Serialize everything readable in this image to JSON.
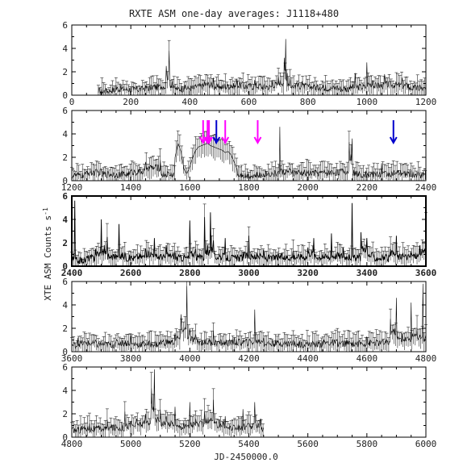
{
  "title": "RXTE ASM one-day averages: J1118+480",
  "xlabel": "JD-2450000.0",
  "ylabel": "XTE ASM Counts s",
  "ylabel_superscript": "-1",
  "colors": {
    "magenta_arrows": "#ff00ff",
    "blue_arrows": "#0000cc",
    "data": "#000000"
  },
  "chart_data": [
    {
      "type": "line",
      "panel": 1,
      "xlim": [
        0,
        1200
      ],
      "ylim": [
        0,
        6
      ],
      "xticks": [
        0,
        200,
        400,
        600,
        800,
        1000,
        1200
      ],
      "yticks": [
        0,
        2,
        4,
        6
      ],
      "series": [
        {
          "x": [
            90,
            100,
            130,
            150,
            180,
            210,
            240,
            270,
            300,
            320,
            330,
            340,
            345,
            350,
            360,
            380,
            400,
            420,
            450,
            480,
            500,
            520,
            540,
            560,
            580,
            600,
            620,
            640,
            660,
            680,
            700,
            720,
            725,
            730,
            740,
            760,
            780,
            800,
            820,
            840,
            860,
            880,
            900,
            920,
            940,
            960,
            980,
            1000,
            1020,
            1040,
            1060,
            1080,
            1100,
            1120,
            1140,
            1160,
            1180,
            1200
          ],
          "y": [
            0.2,
            0.1,
            0.3,
            0.9,
            0.5,
            0.4,
            0.6,
            0.8,
            0.9,
            2.5,
            3.8,
            1.2,
            0.8,
            0.6,
            0.5,
            0.7,
            0.6,
            0.9,
            1.2,
            1.5,
            0.8,
            1.0,
            0.9,
            1.4,
            1.1,
            0.9,
            1.3,
            1.0,
            0.8,
            1.2,
            1.6,
            3.2,
            4.8,
            1.9,
            1.5,
            1.0,
            1.2,
            0.9,
            0.8,
            0.7,
            0.9,
            0.6,
            0.8,
            0.5,
            0.7,
            1.9,
            0.8,
            2.8,
            1.3,
            1.0,
            1.8,
            1.2,
            1.1,
            1.5,
            1.0,
            0.6,
            0.9,
            0.4
          ]
        }
      ],
      "arrows": []
    },
    {
      "type": "line",
      "panel": 2,
      "xlim": [
        1200,
        2400
      ],
      "ylim": [
        0,
        6
      ],
      "xticks": [
        1200,
        1400,
        1600,
        1800,
        2000,
        2200,
        2400
      ],
      "yticks": [
        0,
        2,
        4,
        6
      ],
      "series": [
        {
          "x": [
            1200,
            1250,
            1300,
            1350,
            1400,
            1450,
            1500,
            1530,
            1550,
            1560,
            1570,
            1580,
            1590,
            1600,
            1610,
            1620,
            1630,
            1640,
            1650,
            1660,
            1670,
            1680,
            1690,
            1700,
            1710,
            1720,
            1730,
            1740,
            1750,
            1760,
            1780,
            1800,
            1850,
            1900,
            1905,
            1910,
            1950,
            2000,
            2050,
            2100,
            2140,
            2150,
            2160,
            2200,
            2250,
            2300,
            2350,
            2400
          ],
          "y": [
            0.3,
            0.8,
            1.0,
            0.5,
            0.9,
            1.6,
            1.8,
            0.5,
            2.0,
            3.2,
            2.5,
            1.0,
            0.6,
            1.2,
            2.0,
            2.6,
            2.9,
            3.0,
            3.1,
            3.2,
            3.0,
            2.9,
            2.8,
            2.7,
            2.6,
            2.4,
            2.5,
            2.2,
            1.6,
            1.0,
            0.5,
            0.3,
            0.6,
            0.8,
            4.6,
            1.0,
            0.9,
            0.7,
            0.8,
            0.9,
            3.3,
            3.6,
            0.8,
            0.5,
            1.5,
            0.6,
            0.9,
            0.4
          ]
        }
      ],
      "arrows": [
        {
          "x": 1645,
          "color": "magenta"
        },
        {
          "x": 1660,
          "color": "magenta"
        },
        {
          "x": 1665,
          "color": "magenta"
        },
        {
          "x": 1690,
          "color": "blue"
        },
        {
          "x": 1720,
          "color": "magenta"
        },
        {
          "x": 1830,
          "color": "magenta"
        },
        {
          "x": 2290,
          "color": "blue"
        }
      ]
    },
    {
      "type": "line",
      "panel": 3,
      "xlim": [
        2400,
        3600
      ],
      "ylim": [
        0,
        6
      ],
      "xticks": [
        2400,
        2600,
        2800,
        3000,
        3200,
        3400,
        3600
      ],
      "yticks": [
        0,
        2,
        4,
        6
      ],
      "series": [
        {
          "x": [
            2400,
            2410,
            2420,
            2450,
            2480,
            2500,
            2510,
            2520,
            2540,
            2560,
            2580,
            2600,
            2620,
            2650,
            2680,
            2700,
            2720,
            2750,
            2780,
            2800,
            2820,
            2840,
            2850,
            2860,
            2870,
            2880,
            2900,
            2920,
            2950,
            2980,
            3000,
            3020,
            3050,
            3080,
            3100,
            3120,
            3150,
            3180,
            3200,
            3220,
            3250,
            3280,
            3300,
            3320,
            3340,
            3350,
            3360,
            3380,
            3400,
            3420,
            3450,
            3480,
            3500,
            3520,
            3550,
            3580,
            3600
          ],
          "y": [
            0.5,
            5.6,
            0.4,
            0.8,
            1.5,
            4.0,
            1.8,
            2.5,
            1.0,
            3.6,
            1.2,
            0.8,
            1.0,
            1.5,
            2.4,
            1.0,
            1.8,
            1.2,
            0.8,
            3.9,
            1.5,
            0.9,
            4.2,
            1.8,
            4.6,
            2.2,
            1.0,
            2.4,
            0.8,
            1.2,
            2.6,
            1.0,
            1.4,
            0.8,
            1.1,
            0.9,
            1.3,
            1.0,
            1.6,
            2.4,
            1.0,
            2.8,
            1.2,
            1.6,
            1.0,
            5.4,
            0.8,
            2.9,
            2.4,
            1.2,
            0.8,
            1.5,
            2.6,
            1.0,
            1.2,
            1.8,
            3.6
          ]
        }
      ],
      "arrows": []
    },
    {
      "type": "line",
      "panel": 4,
      "xlim": [
        3600,
        4800
      ],
      "ylim": [
        0,
        6
      ],
      "xticks": [
        3600,
        3800,
        4000,
        4200,
        4400,
        4600,
        4800
      ],
      "yticks": [
        0,
        2,
        4,
        6
      ],
      "series": [
        {
          "x": [
            3600,
            3620,
            3650,
            3680,
            3700,
            3750,
            3800,
            3850,
            3900,
            3950,
            3970,
            3990,
            4000,
            4020,
            4050,
            4080,
            4100,
            4150,
            4200,
            4220,
            4250,
            4300,
            4350,
            4400,
            4450,
            4500,
            4550,
            4600,
            4650,
            4680,
            4700,
            4720,
            4750,
            4770,
            4790,
            4800
          ],
          "y": [
            0.5,
            1.2,
            0.8,
            1.0,
            0.6,
            0.9,
            1.4,
            0.7,
            1.0,
            1.6,
            3.2,
            5.6,
            2.0,
            1.5,
            1.0,
            1.8,
            0.9,
            1.2,
            1.0,
            3.6,
            1.2,
            0.8,
            1.0,
            0.7,
            0.9,
            1.1,
            0.8,
            1.3,
            0.9,
            2.8,
            4.6,
            1.5,
            4.2,
            2.0,
            5.8,
            1.5
          ]
        }
      ],
      "arrows": []
    },
    {
      "type": "line",
      "panel": 5,
      "xlim": [
        4800,
        6000
      ],
      "ylim": [
        0,
        6
      ],
      "xticks": [
        4800,
        5000,
        5200,
        5400,
        5600,
        5800,
        6000
      ],
      "yticks": [
        0,
        2,
        4,
        6
      ],
      "series": [
        {
          "x": [
            4800,
            4830,
            4860,
            4890,
            4920,
            4950,
            4980,
            5000,
            5020,
            5050,
            5070,
            5080,
            5100,
            5120,
            5150,
            5180,
            5200,
            5220,
            5250,
            5280,
            5300,
            5320,
            5350,
            5380,
            5400,
            5420,
            5440,
            5450
          ],
          "y": [
            0.6,
            0.9,
            1.2,
            0.8,
            1.5,
            1.0,
            2.2,
            1.4,
            1.6,
            2.0,
            4.2,
            5.8,
            2.4,
            1.8,
            2.6,
            1.2,
            3.0,
            1.6,
            2.2,
            3.2,
            1.5,
            1.8,
            1.0,
            2.4,
            1.2,
            3.0,
            1.6,
            0.8
          ]
        }
      ],
      "arrows": []
    }
  ]
}
